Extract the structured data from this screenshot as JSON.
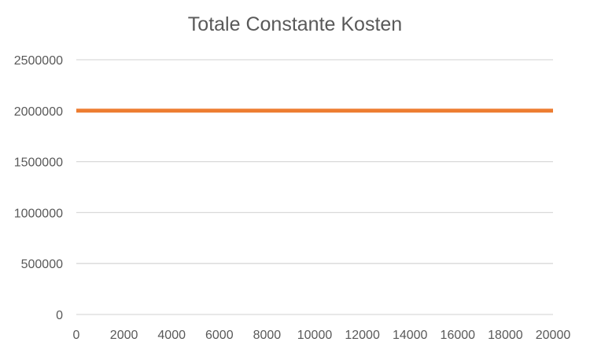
{
  "chart_data": {
    "type": "line",
    "title": "Totale Constante Kosten",
    "xlabel": "",
    "ylabel": "",
    "x_ticks": [
      0,
      2000,
      4000,
      6000,
      8000,
      10000,
      12000,
      14000,
      16000,
      18000,
      20000
    ],
    "y_ticks": [
      0,
      500000,
      1000000,
      1500000,
      2000000,
      2500000
    ],
    "xlim": [
      0,
      20000
    ],
    "ylim": [
      0,
      2500000
    ],
    "grid": "horizontal",
    "legend": "none",
    "series": [
      {
        "color": "#ED7D31",
        "points": [
          [
            0,
            2000000
          ],
          [
            20000,
            2000000
          ]
        ]
      }
    ]
  },
  "colors": {
    "gridline": "#D9D9D9",
    "text": "#595959"
  }
}
